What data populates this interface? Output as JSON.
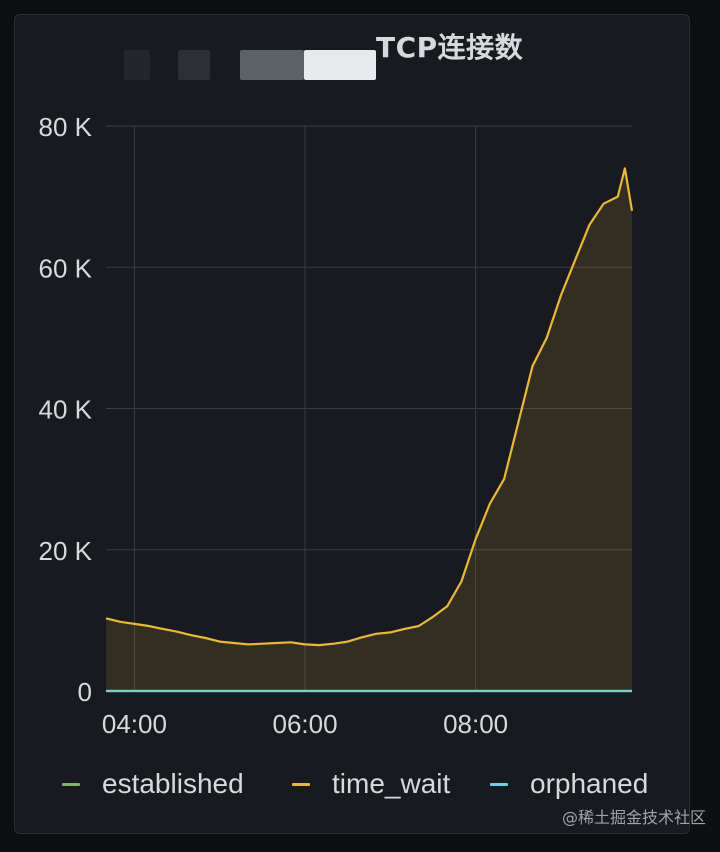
{
  "panel": {
    "title": "TCP连接数",
    "watermark": "@稀土掘金技术社区"
  },
  "chart_data": {
    "type": "area",
    "x_ticks": [
      "04:00",
      "06:00",
      "08:00"
    ],
    "y_ticks": [
      "0",
      "20 K",
      "40 K",
      "60 K",
      "80 K"
    ],
    "xlim": [
      "03:40",
      "09:50"
    ],
    "ylim": [
      0,
      80000
    ],
    "grid": true,
    "legend_placement": "bottom",
    "series": [
      {
        "name": "established",
        "color": "#7eb26d",
        "x": [
          "03:40",
          "09:50"
        ],
        "values": [
          0,
          0
        ]
      },
      {
        "name": "time_wait",
        "color": "#eab839",
        "x": [
          "03:40",
          "03:50",
          "04:00",
          "04:10",
          "04:20",
          "04:30",
          "04:40",
          "04:50",
          "05:00",
          "05:10",
          "05:20",
          "05:30",
          "05:40",
          "05:50",
          "06:00",
          "06:10",
          "06:20",
          "06:30",
          "06:40",
          "06:50",
          "07:00",
          "07:10",
          "07:20",
          "07:30",
          "07:40",
          "07:50",
          "08:00",
          "08:10",
          "08:20",
          "08:30",
          "08:40",
          "08:50",
          "09:00",
          "09:10",
          "09:20",
          "09:30",
          "09:40",
          "09:45",
          "09:50"
        ],
        "values": [
          10300,
          9800,
          9500,
          9200,
          8800,
          8400,
          7900,
          7500,
          7000,
          6800,
          6600,
          6700,
          6800,
          6900,
          6600,
          6500,
          6700,
          7000,
          7600,
          8100,
          8300,
          8800,
          9200,
          10500,
          12000,
          15500,
          21500,
          26500,
          30000,
          38000,
          46000,
          50000,
          56000,
          61000,
          66000,
          69000,
          70000,
          74000,
          68000
        ]
      },
      {
        "name": "orphaned",
        "color": "#6ed0e0",
        "x": [
          "03:40",
          "09:50"
        ],
        "values": [
          0,
          0
        ]
      }
    ]
  }
}
